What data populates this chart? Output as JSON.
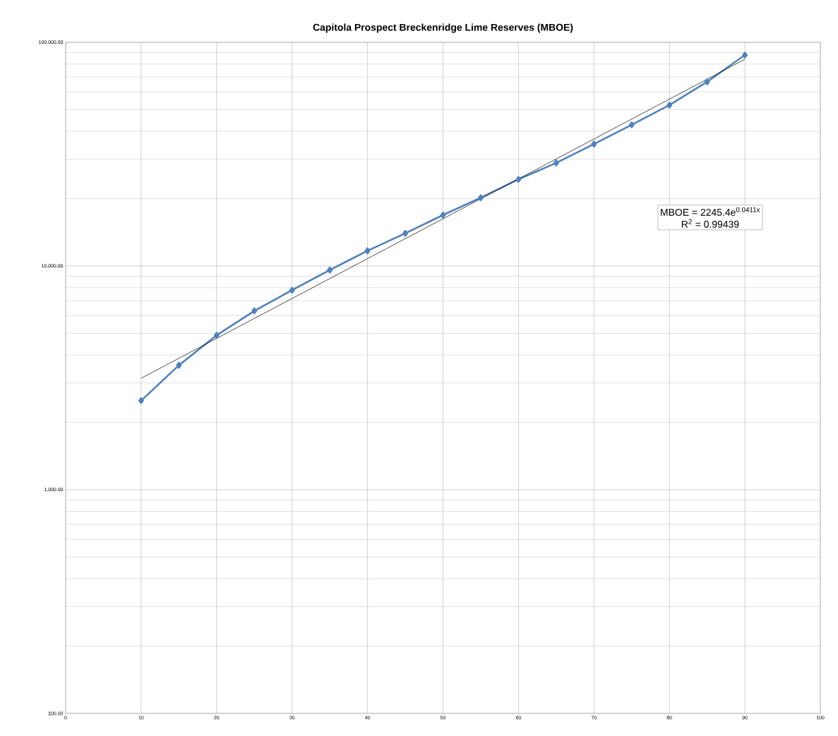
{
  "chart_data": {
    "type": "line",
    "title": "Capitola Prospect Breckenridge Lime Reserves (MBOE)",
    "x": [
      10,
      15,
      20,
      25,
      30,
      35,
      40,
      45,
      50,
      55,
      60,
      65,
      70,
      75,
      80,
      85,
      90
    ],
    "series": [
      {
        "color": "#4f81bd",
        "values": [
          2500,
          3600,
          4900,
          6300,
          7800,
          9600,
          11700,
          14000,
          16900,
          20200,
          24400,
          28900,
          35100,
          42800,
          52400,
          66600,
          87700
        ]
      },
      {
        "type": "line",
        "marker": "none",
        "color": "#000000",
        "x": [
          10,
          90
        ],
        "values": [
          3150,
          84000
        ]
      }
    ],
    "log": "y",
    "grid": true,
    "marker": "diamond",
    "xlim": [
      0,
      100
    ],
    "xticks": [
      0,
      10,
      20,
      30,
      40,
      50,
      60,
      70,
      80,
      90,
      100
    ],
    "ylim": [
      100,
      100000
    ],
    "yticks": [
      {
        "value": 100,
        "label": "100.00"
      },
      {
        "value": 1000,
        "label": "1,000.00"
      },
      {
        "value": 10000,
        "label": "10,000.00"
      },
      {
        "value": 100000,
        "label": "100,000.00"
      }
    ],
    "annotations": [
      "MBOE = 2245.4e$^{0.0411x}$",
      "R$^{2}$ = 0.99439"
    ]
  }
}
